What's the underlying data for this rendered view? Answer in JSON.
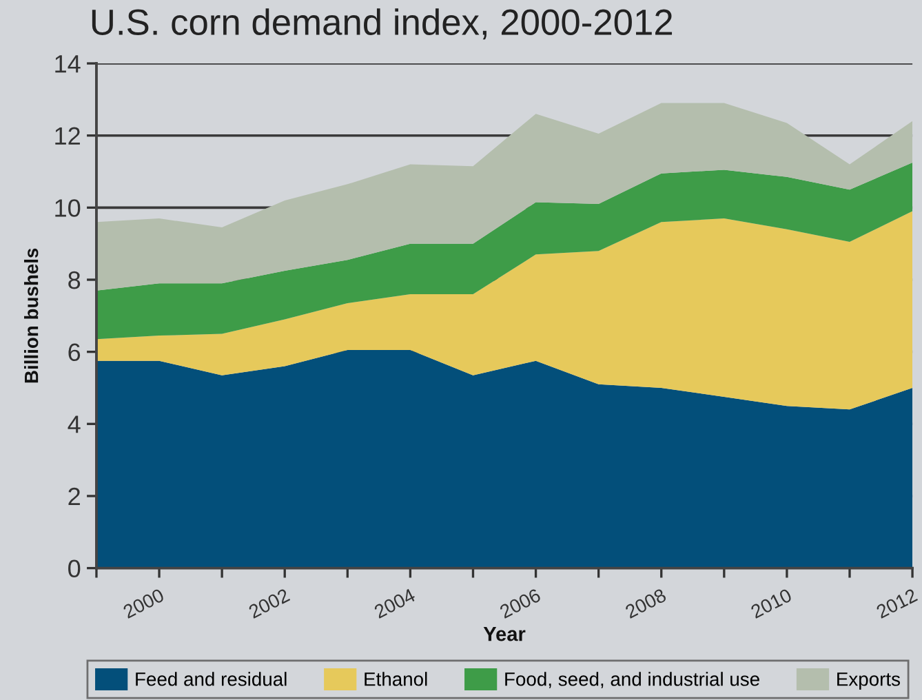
{
  "chart_data": {
    "type": "area",
    "title": "U.S. corn demand index, 2000-2012",
    "xlabel": "Year",
    "ylabel": "Billion bushels",
    "x": [
      1999,
      2000,
      2001,
      2002,
      2003,
      2004,
      2005,
      2006,
      2007,
      2008,
      2009,
      2010,
      2011,
      2012
    ],
    "stacked": true,
    "series": [
      {
        "name": "Feed and residual",
        "color": "#034f7a",
        "values": [
          5.75,
          5.75,
          5.35,
          5.6,
          6.05,
          6.05,
          5.35,
          5.75,
          5.1,
          5.0,
          4.75,
          4.5,
          4.4,
          5.0
        ]
      },
      {
        "name": "Ethanol",
        "color": "#e6c95b",
        "values": [
          0.6,
          0.7,
          1.15,
          1.3,
          1.3,
          1.55,
          2.25,
          2.95,
          3.7,
          4.6,
          4.95,
          4.9,
          4.65,
          4.9
        ]
      },
      {
        "name": "Food, seed, and industrial use",
        "color": "#3e9c48",
        "values": [
          1.35,
          1.45,
          1.4,
          1.35,
          1.2,
          1.4,
          1.4,
          1.45,
          1.3,
          1.35,
          1.35,
          1.45,
          1.45,
          1.35
        ]
      },
      {
        "name": "Exports",
        "color": "#b4bead",
        "values": [
          1.9,
          1.8,
          1.55,
          1.95,
          2.1,
          2.2,
          2.15,
          2.45,
          1.95,
          1.95,
          1.85,
          1.5,
          0.7,
          1.15
        ]
      }
    ],
    "xlim": [
      1999,
      2012
    ],
    "xticks": [
      {
        "value": 1999,
        "label": null
      },
      2000,
      {
        "value": 2001,
        "label": null
      },
      2002,
      {
        "value": 2003,
        "label": null
      },
      2004,
      {
        "value": 2005,
        "label": null
      },
      2006,
      {
        "value": 2007,
        "label": null
      },
      2008,
      {
        "value": 2009,
        "label": null
      },
      2010,
      {
        "value": 2011,
        "label": null
      },
      2012
    ],
    "ylim": [
      0,
      14
    ],
    "yticks": [
      0,
      2,
      4,
      6,
      8,
      10,
      12,
      14
    ],
    "grid": "y",
    "legend": "bottom"
  }
}
